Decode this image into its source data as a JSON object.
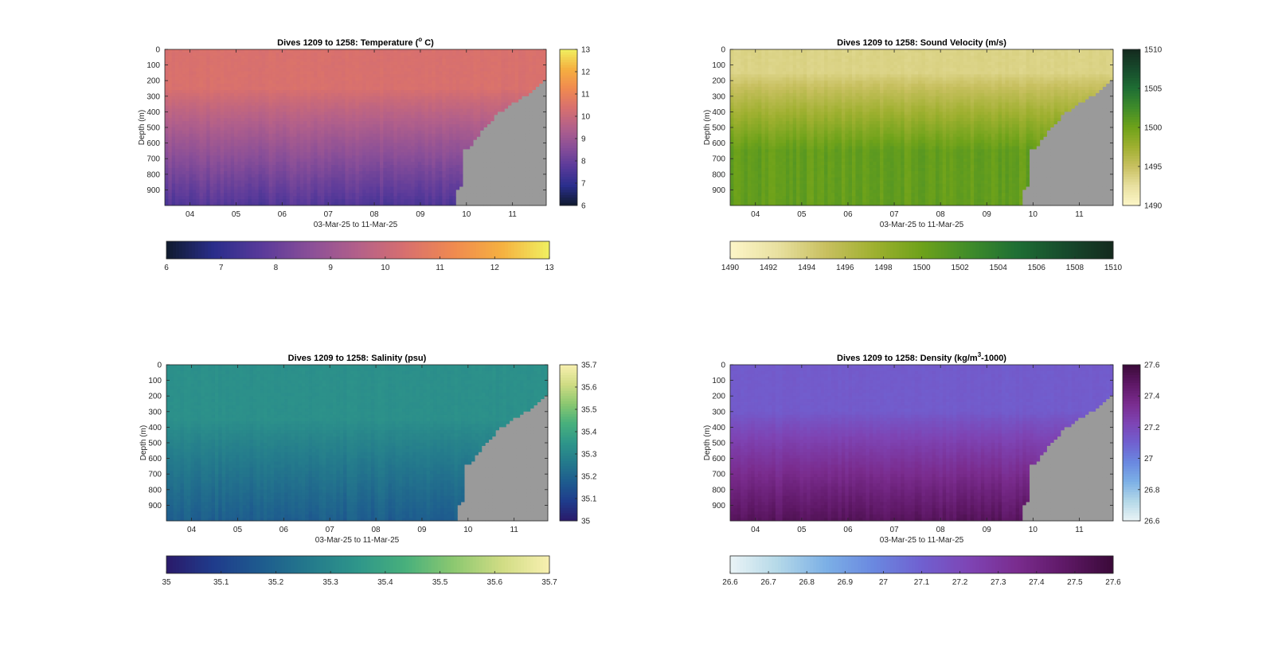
{
  "chart_data": [
    {
      "type": "heatmap",
      "title": "Dives 1209 to 1258: Temperature (",
      "title_sup": "o",
      "title_end": " C)",
      "xlabel": "03-Mar-25 to 11-Mar-25",
      "ylabel": "Depth (m)",
      "x_ticks": [
        "04",
        "05",
        "06",
        "07",
        "08",
        "09",
        "10",
        "11"
      ],
      "y_ticks": [
        "0",
        "100",
        "200",
        "300",
        "400",
        "500",
        "600",
        "700",
        "800",
        "900"
      ],
      "ylim": [
        0,
        1000
      ],
      "clim": [
        6,
        13
      ],
      "colorbar_ticks": [
        "6",
        "7",
        "8",
        "9",
        "10",
        "11",
        "12",
        "13"
      ],
      "hcolorbar_ticks": [
        "6",
        "7",
        "8",
        "9",
        "10",
        "11",
        "12",
        "13"
      ],
      "colormap": [
        "#0f1a2e",
        "#2a2e8c",
        "#5a3a9a",
        "#8a4f98",
        "#b3608a",
        "#d8706e",
        "#f08a50",
        "#f5b040",
        "#f0f060"
      ],
      "surface_value": 10.4,
      "deep_value": 7.6,
      "thermocline_top": 250,
      "thermocline_bottom": 1000
    },
    {
      "type": "heatmap",
      "title": "Dives 1209 to 1258: Sound Velocity (m/s)",
      "title_sup": "",
      "title_end": "",
      "xlabel": "03-Mar-25 to 11-Mar-25",
      "ylabel": "Depth (m)",
      "x_ticks": [
        "04",
        "05",
        "06",
        "07",
        "08",
        "09",
        "10",
        "11"
      ],
      "y_ticks": [
        "0",
        "100",
        "200",
        "300",
        "400",
        "500",
        "600",
        "700",
        "800",
        "900"
      ],
      "ylim": [
        0,
        1000
      ],
      "clim": [
        1490,
        1510
      ],
      "colorbar_ticks": [
        "1490",
        "1495",
        "1500",
        "1505",
        "1510"
      ],
      "hcolorbar_ticks": [
        "1490",
        "1492",
        "1494",
        "1496",
        "1498",
        "1500",
        "1502",
        "1504",
        "1506",
        "1508",
        "1510"
      ],
      "colormap": [
        "#fdf6c8",
        "#e8e0a0",
        "#c8c060",
        "#9fb030",
        "#6ea21a",
        "#3f8c2a",
        "#1e6e34",
        "#174a2c",
        "#142a1e"
      ],
      "surface_value": 1493.5,
      "deep_value": 1500.5,
      "thermocline_top": 150,
      "thermocline_bottom": 650
    },
    {
      "type": "heatmap",
      "title": "Dives 1209 to 1258: Salinity (psu)",
      "title_sup": "",
      "title_end": "",
      "xlabel": "03-Mar-25 to 11-Mar-25",
      "ylabel": "Depth (m)",
      "x_ticks": [
        "04",
        "05",
        "06",
        "07",
        "08",
        "09",
        "10",
        "11"
      ],
      "y_ticks": [
        "0",
        "100",
        "200",
        "300",
        "400",
        "500",
        "600",
        "700",
        "800",
        "900"
      ],
      "ylim": [
        0,
        1000
      ],
      "clim": [
        35,
        35.7
      ],
      "colorbar_ticks": [
        "35",
        "35.1",
        "35.2",
        "35.3",
        "35.4",
        "35.5",
        "35.6",
        "35.7"
      ],
      "hcolorbar_ticks": [
        "35",
        "35.1",
        "35.2",
        "35.3",
        "35.4",
        "35.5",
        "35.6",
        "35.7"
      ],
      "colormap": [
        "#2a1a6a",
        "#1f3c8c",
        "#1e5c8e",
        "#247a8c",
        "#2e968a",
        "#48b07c",
        "#8cc870",
        "#d0dc84",
        "#f8f0b0"
      ],
      "surface_value": 35.33,
      "deep_value": 35.18,
      "thermocline_top": 350,
      "thermocline_bottom": 1000
    },
    {
      "type": "heatmap",
      "title": "Dives 1209 to 1258: Density (kg/m",
      "title_sup": "3",
      "title_end": "-1000)",
      "xlabel": "03-Mar-25 to 11-Mar-25",
      "ylabel": "Depth (m)",
      "x_ticks": [
        "04",
        "05",
        "06",
        "07",
        "08",
        "09",
        "10",
        "11"
      ],
      "y_ticks": [
        "0",
        "100",
        "200",
        "300",
        "400",
        "500",
        "600",
        "700",
        "800",
        "900"
      ],
      "ylim": [
        0,
        1000
      ],
      "clim": [
        26.6,
        27.6
      ],
      "colorbar_ticks": [
        "26.6",
        "26.8",
        "27",
        "27.2",
        "27.4",
        "27.6"
      ],
      "hcolorbar_ticks": [
        "26.6",
        "26.7",
        "26.8",
        "26.9",
        "27",
        "27.1",
        "27.2",
        "27.3",
        "27.4",
        "27.5",
        "27.6"
      ],
      "colormap": [
        "#eaf4f6",
        "#b4d8e8",
        "#7cb0e6",
        "#6a88e0",
        "#7060d0",
        "#7e44b4",
        "#7a2c8e",
        "#5e1866",
        "#3a0a38"
      ],
      "surface_value": 27.12,
      "deep_value": 27.5,
      "thermocline_top": 300,
      "thermocline_bottom": 1000
    }
  ],
  "colors": {
    "no_data": "#9a9a9a",
    "axes": "#262626"
  }
}
